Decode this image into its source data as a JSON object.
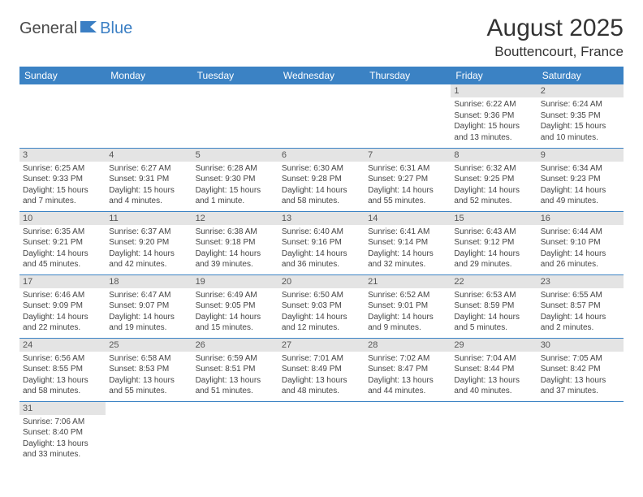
{
  "logo": {
    "text1": "General",
    "text2": "Blue"
  },
  "title": "August 2025",
  "location": "Bouttencourt, France",
  "colors": {
    "header_bg": "#3b82c4",
    "header_text": "#ffffff",
    "daynum_bg": "#e4e4e4",
    "daynum_text": "#555555",
    "body_text": "#444444",
    "row_divider": "#3b82c4",
    "logo_gray": "#4a4a4a",
    "logo_blue": "#3b7fc4"
  },
  "weekdays": [
    "Sunday",
    "Monday",
    "Tuesday",
    "Wednesday",
    "Thursday",
    "Friday",
    "Saturday"
  ],
  "weeks": [
    [
      {
        "n": "",
        "sr": "",
        "ss": "",
        "dl": ""
      },
      {
        "n": "",
        "sr": "",
        "ss": "",
        "dl": ""
      },
      {
        "n": "",
        "sr": "",
        "ss": "",
        "dl": ""
      },
      {
        "n": "",
        "sr": "",
        "ss": "",
        "dl": ""
      },
      {
        "n": "",
        "sr": "",
        "ss": "",
        "dl": ""
      },
      {
        "n": "1",
        "sr": "Sunrise: 6:22 AM",
        "ss": "Sunset: 9:36 PM",
        "dl": "Daylight: 15 hours and 13 minutes."
      },
      {
        "n": "2",
        "sr": "Sunrise: 6:24 AM",
        "ss": "Sunset: 9:35 PM",
        "dl": "Daylight: 15 hours and 10 minutes."
      }
    ],
    [
      {
        "n": "3",
        "sr": "Sunrise: 6:25 AM",
        "ss": "Sunset: 9:33 PM",
        "dl": "Daylight: 15 hours and 7 minutes."
      },
      {
        "n": "4",
        "sr": "Sunrise: 6:27 AM",
        "ss": "Sunset: 9:31 PM",
        "dl": "Daylight: 15 hours and 4 minutes."
      },
      {
        "n": "5",
        "sr": "Sunrise: 6:28 AM",
        "ss": "Sunset: 9:30 PM",
        "dl": "Daylight: 15 hours and 1 minute."
      },
      {
        "n": "6",
        "sr": "Sunrise: 6:30 AM",
        "ss": "Sunset: 9:28 PM",
        "dl": "Daylight: 14 hours and 58 minutes."
      },
      {
        "n": "7",
        "sr": "Sunrise: 6:31 AM",
        "ss": "Sunset: 9:27 PM",
        "dl": "Daylight: 14 hours and 55 minutes."
      },
      {
        "n": "8",
        "sr": "Sunrise: 6:32 AM",
        "ss": "Sunset: 9:25 PM",
        "dl": "Daylight: 14 hours and 52 minutes."
      },
      {
        "n": "9",
        "sr": "Sunrise: 6:34 AM",
        "ss": "Sunset: 9:23 PM",
        "dl": "Daylight: 14 hours and 49 minutes."
      }
    ],
    [
      {
        "n": "10",
        "sr": "Sunrise: 6:35 AM",
        "ss": "Sunset: 9:21 PM",
        "dl": "Daylight: 14 hours and 45 minutes."
      },
      {
        "n": "11",
        "sr": "Sunrise: 6:37 AM",
        "ss": "Sunset: 9:20 PM",
        "dl": "Daylight: 14 hours and 42 minutes."
      },
      {
        "n": "12",
        "sr": "Sunrise: 6:38 AM",
        "ss": "Sunset: 9:18 PM",
        "dl": "Daylight: 14 hours and 39 minutes."
      },
      {
        "n": "13",
        "sr": "Sunrise: 6:40 AM",
        "ss": "Sunset: 9:16 PM",
        "dl": "Daylight: 14 hours and 36 minutes."
      },
      {
        "n": "14",
        "sr": "Sunrise: 6:41 AM",
        "ss": "Sunset: 9:14 PM",
        "dl": "Daylight: 14 hours and 32 minutes."
      },
      {
        "n": "15",
        "sr": "Sunrise: 6:43 AM",
        "ss": "Sunset: 9:12 PM",
        "dl": "Daylight: 14 hours and 29 minutes."
      },
      {
        "n": "16",
        "sr": "Sunrise: 6:44 AM",
        "ss": "Sunset: 9:10 PM",
        "dl": "Daylight: 14 hours and 26 minutes."
      }
    ],
    [
      {
        "n": "17",
        "sr": "Sunrise: 6:46 AM",
        "ss": "Sunset: 9:09 PM",
        "dl": "Daylight: 14 hours and 22 minutes."
      },
      {
        "n": "18",
        "sr": "Sunrise: 6:47 AM",
        "ss": "Sunset: 9:07 PM",
        "dl": "Daylight: 14 hours and 19 minutes."
      },
      {
        "n": "19",
        "sr": "Sunrise: 6:49 AM",
        "ss": "Sunset: 9:05 PM",
        "dl": "Daylight: 14 hours and 15 minutes."
      },
      {
        "n": "20",
        "sr": "Sunrise: 6:50 AM",
        "ss": "Sunset: 9:03 PM",
        "dl": "Daylight: 14 hours and 12 minutes."
      },
      {
        "n": "21",
        "sr": "Sunrise: 6:52 AM",
        "ss": "Sunset: 9:01 PM",
        "dl": "Daylight: 14 hours and 9 minutes."
      },
      {
        "n": "22",
        "sr": "Sunrise: 6:53 AM",
        "ss": "Sunset: 8:59 PM",
        "dl": "Daylight: 14 hours and 5 minutes."
      },
      {
        "n": "23",
        "sr": "Sunrise: 6:55 AM",
        "ss": "Sunset: 8:57 PM",
        "dl": "Daylight: 14 hours and 2 minutes."
      }
    ],
    [
      {
        "n": "24",
        "sr": "Sunrise: 6:56 AM",
        "ss": "Sunset: 8:55 PM",
        "dl": "Daylight: 13 hours and 58 minutes."
      },
      {
        "n": "25",
        "sr": "Sunrise: 6:58 AM",
        "ss": "Sunset: 8:53 PM",
        "dl": "Daylight: 13 hours and 55 minutes."
      },
      {
        "n": "26",
        "sr": "Sunrise: 6:59 AM",
        "ss": "Sunset: 8:51 PM",
        "dl": "Daylight: 13 hours and 51 minutes."
      },
      {
        "n": "27",
        "sr": "Sunrise: 7:01 AM",
        "ss": "Sunset: 8:49 PM",
        "dl": "Daylight: 13 hours and 48 minutes."
      },
      {
        "n": "28",
        "sr": "Sunrise: 7:02 AM",
        "ss": "Sunset: 8:47 PM",
        "dl": "Daylight: 13 hours and 44 minutes."
      },
      {
        "n": "29",
        "sr": "Sunrise: 7:04 AM",
        "ss": "Sunset: 8:44 PM",
        "dl": "Daylight: 13 hours and 40 minutes."
      },
      {
        "n": "30",
        "sr": "Sunrise: 7:05 AM",
        "ss": "Sunset: 8:42 PM",
        "dl": "Daylight: 13 hours and 37 minutes."
      }
    ],
    [
      {
        "n": "31",
        "sr": "Sunrise: 7:06 AM",
        "ss": "Sunset: 8:40 PM",
        "dl": "Daylight: 13 hours and 33 minutes."
      },
      {
        "n": "",
        "sr": "",
        "ss": "",
        "dl": ""
      },
      {
        "n": "",
        "sr": "",
        "ss": "",
        "dl": ""
      },
      {
        "n": "",
        "sr": "",
        "ss": "",
        "dl": ""
      },
      {
        "n": "",
        "sr": "",
        "ss": "",
        "dl": ""
      },
      {
        "n": "",
        "sr": "",
        "ss": "",
        "dl": ""
      },
      {
        "n": "",
        "sr": "",
        "ss": "",
        "dl": ""
      }
    ]
  ]
}
